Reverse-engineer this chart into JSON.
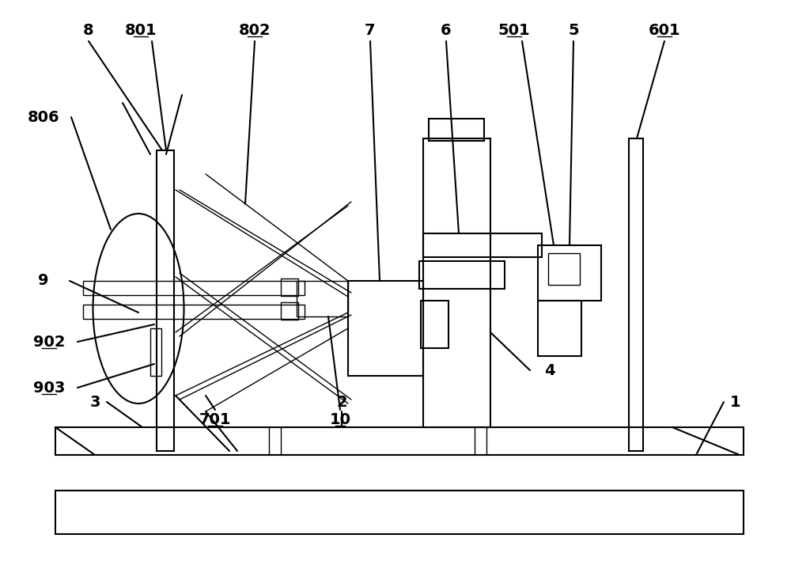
{
  "bg_color": "#ffffff",
  "lc": "#000000",
  "lw": 1.5,
  "lw2": 1.0,
  "fig_w": 10.0,
  "fig_h": 7.28,
  "dpi": 100
}
